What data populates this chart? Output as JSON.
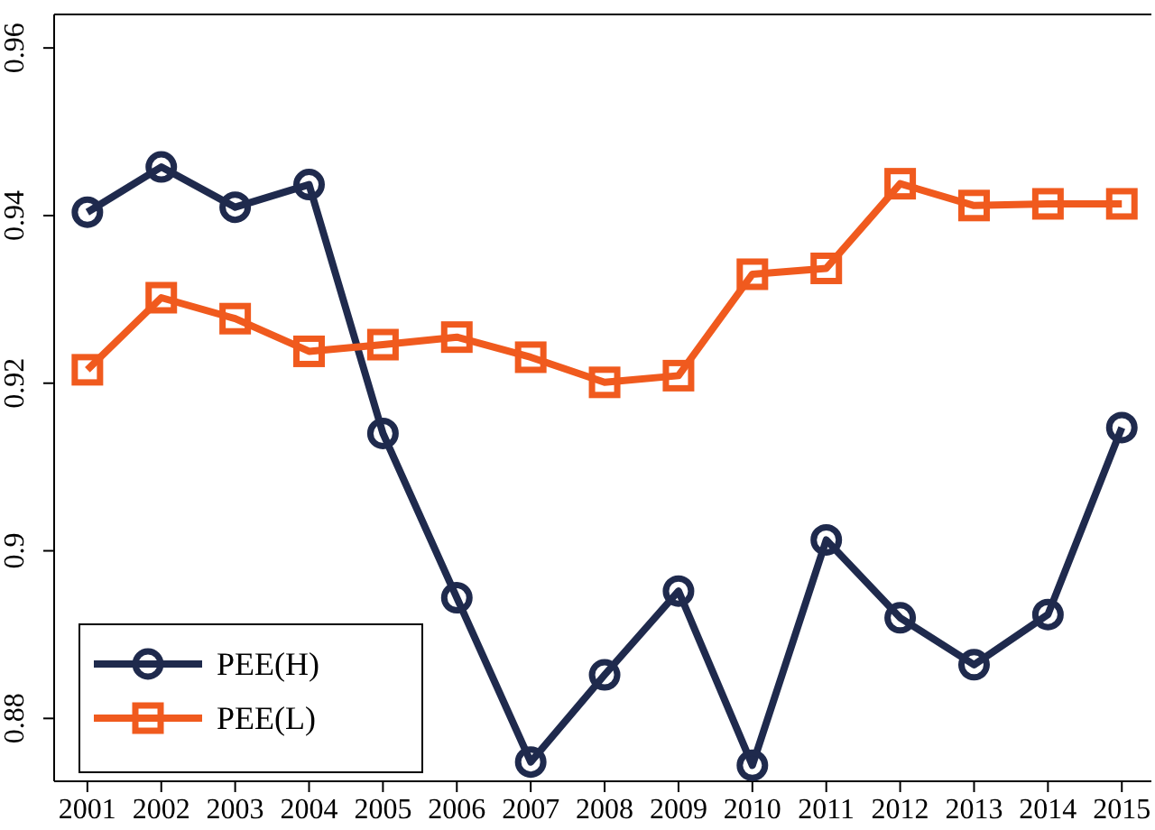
{
  "chart_data": {
    "type": "line",
    "x": [
      2001,
      2002,
      2003,
      2004,
      2005,
      2006,
      2007,
      2008,
      2009,
      2010,
      2011,
      2012,
      2013,
      2014,
      2015
    ],
    "xlim": [
      2000.55,
      2015.4
    ],
    "xticks": [
      2001,
      2002,
      2003,
      2004,
      2005,
      2006,
      2007,
      2008,
      2009,
      2010,
      2011,
      2012,
      2013,
      2014,
      2015
    ],
    "ylim": [
      0.8725,
      0.964
    ],
    "yticks": [
      {
        "value": 0.88,
        "label": "0.88"
      },
      {
        "value": 0.9,
        "label": "0.9"
      },
      {
        "value": 0.92,
        "label": "0.92"
      },
      {
        "value": 0.94,
        "label": "0.94"
      },
      {
        "value": 0.96,
        "label": "0.96"
      }
    ],
    "grid": false,
    "legend": "bottom left",
    "line_style": "solid",
    "series": [
      {
        "name": "PEE(H)",
        "color": "#1f2a4d",
        "marker": "circle",
        "values": [
          0.9404,
          0.9458,
          0.941,
          0.9437,
          0.914,
          0.8944,
          0.8748,
          0.8852,
          0.8952,
          0.8744,
          0.9013,
          0.892,
          0.8864,
          0.8924,
          0.9147
        ]
      },
      {
        "name": "PEE(L)",
        "color": "#f05a1e",
        "marker": "square",
        "values": [
          0.9216,
          0.9302,
          0.9277,
          0.9238,
          0.9246,
          0.9255,
          0.9231,
          0.9201,
          0.9209,
          0.933,
          0.9337,
          0.9438,
          0.9412,
          0.9414,
          0.9414
        ]
      }
    ]
  }
}
